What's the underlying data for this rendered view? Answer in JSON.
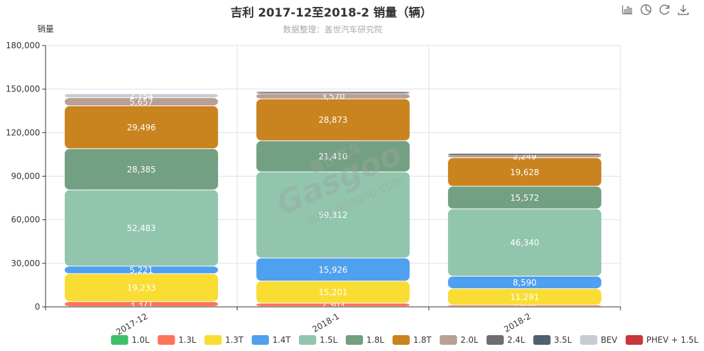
{
  "toolbar": {
    "icons": [
      "bar-chart-icon",
      "pie-chart-icon",
      "refresh-icon",
      "download-icon"
    ]
  },
  "watermark": {
    "brand_cn": "盖世汽车",
    "brand_en": "Gasgoo",
    "url": "auto.gasgoo.com"
  },
  "chart_data": {
    "type": "bar",
    "stacked": true,
    "title": "吉利 2017-12至2018-2 销量（辆）",
    "subtitle": "数据整理：盖世汽车研究院",
    "ylabel": "销量",
    "ylim": [
      0,
      180000
    ],
    "yticks": [
      "0",
      "30,000",
      "60,000",
      "90,000",
      "120,000",
      "150,000",
      "180,000"
    ],
    "yticks_values": [
      0,
      30000,
      60000,
      90000,
      120000,
      150000,
      180000
    ],
    "categories": [
      "2017-12",
      "2018-1",
      "2018-2"
    ],
    "grid": true,
    "legend_position": "bottom-right",
    "series": [
      {
        "name": "1.0L",
        "color": "#3fbf6a",
        "values": [
          0,
          0,
          0
        ],
        "labels": [
          "",
          "",
          ""
        ]
      },
      {
        "name": "1.3L",
        "color": "#ff7358",
        "values": [
          3371,
          2303,
          1020
        ],
        "labels": [
          "3,371",
          "2,303",
          "1,020"
        ]
      },
      {
        "name": "1.3T",
        "color": "#f9dd33",
        "values": [
          19233,
          15201,
          11291
        ],
        "labels": [
          "19,233",
          "15,201",
          "11,291"
        ]
      },
      {
        "name": "1.4T",
        "color": "#4fa0ef",
        "values": [
          5221,
          15926,
          8590
        ],
        "labels": [
          "5,221",
          "15,926",
          "8,590"
        ]
      },
      {
        "name": "1.5L",
        "color": "#92c5ad",
        "values": [
          52483,
          59312,
          46340
        ],
        "labels": [
          "52,483",
          "59,312",
          "46,340"
        ]
      },
      {
        "name": "1.8L",
        "color": "#739f82",
        "values": [
          28385,
          21410,
          15572
        ],
        "labels": [
          "28,385",
          "21,410",
          "15,572"
        ]
      },
      {
        "name": "1.8T",
        "color": "#c98420",
        "values": [
          29496,
          28873,
          19628
        ],
        "labels": [
          "29,496",
          "28,873",
          "19,628"
        ]
      },
      {
        "name": "2.0L",
        "color": "#b9a093",
        "values": [
          5657,
          3570,
          2249
        ],
        "labels": [
          "5,657",
          "3,570",
          "2,249"
        ]
      },
      {
        "name": "2.4L",
        "color": "#6e6e72",
        "values": [
          0,
          800,
          450
        ],
        "labels": [
          "",
          "",
          ""
        ]
      },
      {
        "name": "3.5L",
        "color": "#525f6c",
        "values": [
          0,
          650,
          350
        ],
        "labels": [
          "",
          "",
          ""
        ]
      },
      {
        "name": "BEV",
        "color": "#c5ccd4",
        "values": [
          2754,
          0,
          0
        ],
        "labels": [
          "2,754",
          "",
          ""
        ]
      },
      {
        "name": "PHEV + 1.5L",
        "color": "#c9353a",
        "values": [
          0,
          0,
          0
        ],
        "labels": [
          "",
          "",
          ""
        ]
      }
    ]
  }
}
